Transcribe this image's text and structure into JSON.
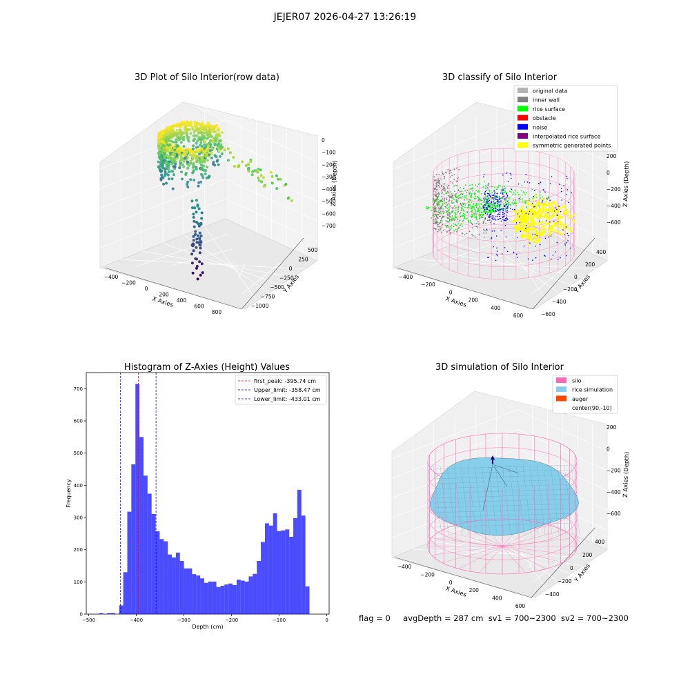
{
  "suptitle": "JEJER07 2026-04-27 13:26:19",
  "status": {
    "flag": "flag = 0",
    "avg_depth": "avgDepth = 287 cm",
    "sv1": "sv1 = 700~2300",
    "sv2": "sv2 = 700~2300"
  },
  "chart_data": [
    {
      "type": "scatter",
      "title": "3D Plot of Silo Interior(row data)",
      "xlabel": "X Axies",
      "ylabel": "Y Axies",
      "zlabel": "Z Axies (Depth)",
      "xticks": [
        "−400",
        "−200",
        "0",
        "200",
        "400",
        "600",
        "800"
      ],
      "yticks": [
        "500",
        "250",
        "0",
        "−250",
        "−500",
        "−750",
        "−1000"
      ],
      "zticks": [
        "0",
        "−100",
        "−200",
        "−300",
        "−400",
        "−500",
        "−600",
        "−700"
      ],
      "xlim": [
        -450,
        850
      ],
      "ylim": [
        -1100,
        600
      ],
      "zlim": [
        -780,
        20
      ],
      "colormap": "viridis",
      "notes": "dense ring of surface points near silo wall, scattered outliers toward +x, vertical column of points down to about -780"
    },
    {
      "type": "scatter",
      "title": "3D classify of Silo Interior",
      "xlabel": "X Axies",
      "ylabel": "Y Axies",
      "zlabel": "Z Axies (Depth)",
      "xticks": [
        "−400",
        "−200",
        "0",
        "200",
        "400",
        "600"
      ],
      "yticks": [
        "400",
        "200",
        "0",
        "−200",
        "−400",
        "−600"
      ],
      "zticks": [
        "200",
        "0",
        "−200",
        "−400",
        "−600"
      ],
      "legend": [
        {
          "label": "original data",
          "color": "#b3b3b3"
        },
        {
          "label": "inner wall",
          "color": "#808080"
        },
        {
          "label": "rice surface",
          "color": "#00ff00"
        },
        {
          "label": "obstacle",
          "color": "#ff0000"
        },
        {
          "label": "noise",
          "color": "#0000ff"
        },
        {
          "label": "interpolated rice surface",
          "color": "#800080"
        },
        {
          "label": "symmetric generated points",
          "color": "#ffff00"
        }
      ],
      "cylinder_color": "#ff69b4",
      "legend_loc": "upper right"
    },
    {
      "type": "bar",
      "title": "Histogram of Z-Axies (Height) Values",
      "xlabel": "Depth (cm)",
      "ylabel": "Frequency",
      "xlim": [
        -505,
        5
      ],
      "ylim": [
        0,
        750
      ],
      "xticks": [
        -500,
        -400,
        -300,
        -200,
        -100,
        0
      ],
      "yticks": [
        0,
        100,
        200,
        300,
        400,
        500,
        600,
        700
      ],
      "bar_color": "#0000ff",
      "bins": [
        {
          "x0": -478.3,
          "x1": -469.8,
          "value": 3
        },
        {
          "x0": -469.8,
          "x1": -461.3,
          "value": 0
        },
        {
          "x0": -461.3,
          "x1": -452.8,
          "value": 3
        },
        {
          "x0": -452.8,
          "x1": -444.3,
          "value": 3
        },
        {
          "x0": -444.3,
          "x1": -435.8,
          "value": 0
        },
        {
          "x0": -435.8,
          "x1": -427.3,
          "value": 27
        },
        {
          "x0": -427.3,
          "x1": -418.8,
          "value": 130
        },
        {
          "x0": -418.8,
          "x1": -410.3,
          "value": 318
        },
        {
          "x0": -410.3,
          "x1": -401.8,
          "value": 465
        },
        {
          "x0": -401.8,
          "x1": -393.3,
          "value": 715
        },
        {
          "x0": -393.3,
          "x1": -384.8,
          "value": 550
        },
        {
          "x0": -384.8,
          "x1": -376.3,
          "value": 430
        },
        {
          "x0": -376.3,
          "x1": -367.8,
          "value": 374
        },
        {
          "x0": -367.8,
          "x1": -359.3,
          "value": 311
        },
        {
          "x0": -359.3,
          "x1": -350.8,
          "value": 257
        },
        {
          "x0": -350.8,
          "x1": -342.3,
          "value": 233
        },
        {
          "x0": -342.3,
          "x1": -333.8,
          "value": 226
        },
        {
          "x0": -333.8,
          "x1": -325.3,
          "value": 185
        },
        {
          "x0": -325.3,
          "x1": -316.8,
          "value": 176
        },
        {
          "x0": -316.8,
          "x1": -308.3,
          "value": 191
        },
        {
          "x0": -308.3,
          "x1": -299.8,
          "value": 165
        },
        {
          "x0": -299.8,
          "x1": -291.3,
          "value": 142
        },
        {
          "x0": -291.3,
          "x1": -282.8,
          "value": 142
        },
        {
          "x0": -282.8,
          "x1": -274.3,
          "value": 124
        },
        {
          "x0": -274.3,
          "x1": -265.8,
          "value": 120
        },
        {
          "x0": -265.8,
          "x1": -257.3,
          "value": 111
        },
        {
          "x0": -257.3,
          "x1": -248.8,
          "value": 97
        },
        {
          "x0": -248.8,
          "x1": -240.3,
          "value": 101
        },
        {
          "x0": -240.3,
          "x1": -231.8,
          "value": 101
        },
        {
          "x0": -231.8,
          "x1": -223.3,
          "value": 84
        },
        {
          "x0": -223.3,
          "x1": -214.8,
          "value": 88
        },
        {
          "x0": -214.8,
          "x1": -206.3,
          "value": 92
        },
        {
          "x0": -206.3,
          "x1": -197.8,
          "value": 95
        },
        {
          "x0": -197.8,
          "x1": -189.3,
          "value": 90
        },
        {
          "x0": -189.3,
          "x1": -180.8,
          "value": 107
        },
        {
          "x0": -180.8,
          "x1": -172.3,
          "value": 104
        },
        {
          "x0": -172.3,
          "x1": -163.8,
          "value": 101
        },
        {
          "x0": -163.8,
          "x1": -155.3,
          "value": 117
        },
        {
          "x0": -155.3,
          "x1": -146.8,
          "value": 125
        },
        {
          "x0": -146.8,
          "x1": -138.3,
          "value": 165
        },
        {
          "x0": -138.3,
          "x1": -129.8,
          "value": 224
        },
        {
          "x0": -129.8,
          "x1": -121.3,
          "value": 282
        },
        {
          "x0": -121.3,
          "x1": -112.8,
          "value": 275
        },
        {
          "x0": -112.8,
          "x1": -104.3,
          "value": 313
        },
        {
          "x0": -104.3,
          "x1": -95.8,
          "value": 258
        },
        {
          "x0": -95.8,
          "x1": -87.3,
          "value": 260
        },
        {
          "x0": -87.3,
          "x1": -78.8,
          "value": 263
        },
        {
          "x0": -78.8,
          "x1": -70.3,
          "value": 240
        },
        {
          "x0": -70.3,
          "x1": -61.8,
          "value": 298
        },
        {
          "x0": -61.8,
          "x1": -53.3,
          "value": 386
        },
        {
          "x0": -53.3,
          "x1": -44.8,
          "value": 306
        },
        {
          "x0": -44.8,
          "x1": -36.3,
          "value": 86
        }
      ],
      "vlines": [
        {
          "label": "first_peak: -395.74 cm",
          "x": -395.74,
          "color": "#ff0000"
        },
        {
          "label": "Upper_limit: -358.47 cm",
          "x": -358.47,
          "color": "#0000ff"
        },
        {
          "label": "Lower_limit: -433.01 cm",
          "x": -433.01,
          "color": "#0000ff"
        }
      ],
      "legend_loc": "upper right"
    },
    {
      "type": "surface",
      "title": "3D simulation of Silo Interior",
      "xlabel": "X Axies",
      "ylabel": "Y Axies",
      "zlabel": "Z Axies (Depth)",
      "xticks": [
        "−400",
        "−200",
        "0",
        "200",
        "400",
        "600"
      ],
      "yticks": [
        "400",
        "200",
        "0",
        "−200",
        "−400"
      ],
      "zticks": [
        "200",
        "0",
        "−200",
        "−400",
        "−600"
      ],
      "legend": [
        {
          "label": "silo",
          "color": "#ff69b4"
        },
        {
          "label": "rice simulation",
          "color": "#87ceeb"
        },
        {
          "label": "auger",
          "color": "#ff4500"
        },
        {
          "label": "center(90,-10)",
          "color": ""
        }
      ],
      "legend_loc": "upper right"
    }
  ]
}
